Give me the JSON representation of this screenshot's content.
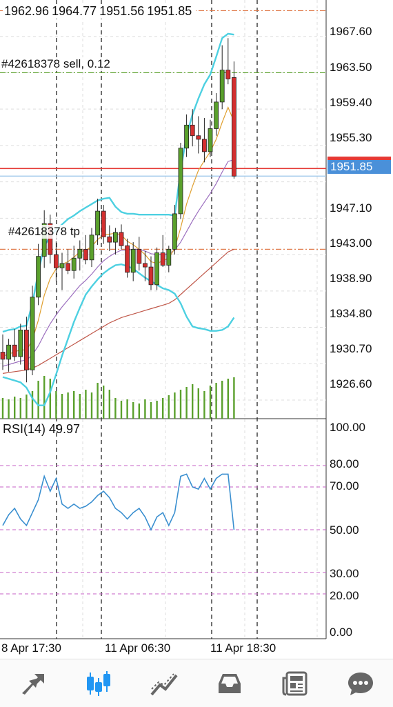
{
  "header_ohlc": {
    "open": "1962.96",
    "high": "1964.77",
    "low": "1951.56",
    "close": "1951.85"
  },
  "orders": [
    {
      "label": "#42618378 sell, 0.12"
    },
    {
      "label": "#42618378 tp"
    }
  ],
  "current_price": "1951.85",
  "price_axis": [
    "1967.60",
    "1963.50",
    "1959.40",
    "1955.30",
    "1947.10",
    "1943.00",
    "1938.90",
    "1934.80",
    "1930.70",
    "1926.60"
  ],
  "rsi": {
    "title": "RSI(14) 49.97",
    "levels": [
      "100.00",
      "80.00",
      "70.00",
      "50.00",
      "30.00",
      "20.00",
      "0.00"
    ]
  },
  "time_axis": [
    "8 Apr 17:30",
    "11 Apr 06:30",
    "11 Apr 18:30"
  ],
  "colors": {
    "bull": "#5aa02c",
    "bear": "#d32f2f",
    "bands": "#4dd0e1",
    "ma_fast": "#e0a030",
    "ma_mid": "#9c6fbf",
    "ma_slow": "#c0584a",
    "rsi_line": "#3a8fd0",
    "accent": "#2196f3"
  },
  "toolbar": {
    "items": [
      {
        "name": "quotes",
        "icon": "arrows-icon"
      },
      {
        "name": "chart",
        "icon": "candles-icon"
      },
      {
        "name": "trade",
        "icon": "trend-icon"
      },
      {
        "name": "history",
        "icon": "inbox-icon"
      },
      {
        "name": "news",
        "icon": "newspaper-icon"
      },
      {
        "name": "messages",
        "icon": "chat-icon"
      }
    ]
  },
  "chart_data": {
    "type": "candlestick",
    "y_range": [
      1924.5,
      1971.7
    ],
    "price_lines": {
      "sell_order": 1963.5,
      "tp": 1943.6,
      "bid": 1951.85,
      "ask": 1952.7,
      "top_line": 1970.5
    },
    "candles": [
      {
        "o": 1932.0,
        "h": 1934.0,
        "l": 1930.0,
        "c": 1931.2
      },
      {
        "o": 1931.2,
        "h": 1933.5,
        "l": 1929.8,
        "c": 1932.8
      },
      {
        "o": 1932.8,
        "h": 1934.6,
        "l": 1931.0,
        "c": 1931.5
      },
      {
        "o": 1931.5,
        "h": 1935.2,
        "l": 1930.6,
        "c": 1934.5
      },
      {
        "o": 1934.5,
        "h": 1936.0,
        "l": 1928.6,
        "c": 1930.0
      },
      {
        "o": 1930.0,
        "h": 1939.5,
        "l": 1929.4,
        "c": 1938.2
      },
      {
        "o": 1938.2,
        "h": 1944.2,
        "l": 1937.3,
        "c": 1942.8
      },
      {
        "o": 1942.8,
        "h": 1948.0,
        "l": 1941.5,
        "c": 1946.5
      },
      {
        "o": 1946.5,
        "h": 1947.5,
        "l": 1942.0,
        "c": 1943.0
      },
      {
        "o": 1943.0,
        "h": 1944.5,
        "l": 1940.0,
        "c": 1941.5
      },
      {
        "o": 1941.5,
        "h": 1943.2,
        "l": 1939.0,
        "c": 1942.0
      },
      {
        "o": 1942.0,
        "h": 1943.6,
        "l": 1940.8,
        "c": 1941.2
      },
      {
        "o": 1941.2,
        "h": 1944.0,
        "l": 1940.3,
        "c": 1942.6
      },
      {
        "o": 1942.6,
        "h": 1944.6,
        "l": 1941.2,
        "c": 1943.6
      },
      {
        "o": 1943.6,
        "h": 1945.2,
        "l": 1941.9,
        "c": 1942.4
      },
      {
        "o": 1942.4,
        "h": 1946.0,
        "l": 1941.6,
        "c": 1945.2
      },
      {
        "o": 1945.2,
        "h": 1949.3,
        "l": 1944.1,
        "c": 1947.9
      },
      {
        "o": 1947.9,
        "h": 1948.6,
        "l": 1944.2,
        "c": 1945.0
      },
      {
        "o": 1945.0,
        "h": 1946.3,
        "l": 1943.4,
        "c": 1944.4
      },
      {
        "o": 1944.4,
        "h": 1946.0,
        "l": 1943.0,
        "c": 1945.5
      },
      {
        "o": 1945.5,
        "h": 1946.4,
        "l": 1943.6,
        "c": 1944.0
      },
      {
        "o": 1944.0,
        "h": 1944.8,
        "l": 1940.4,
        "c": 1941.0
      },
      {
        "o": 1941.0,
        "h": 1944.4,
        "l": 1940.0,
        "c": 1943.6
      },
      {
        "o": 1943.6,
        "h": 1945.0,
        "l": 1941.2,
        "c": 1942.0
      },
      {
        "o": 1942.0,
        "h": 1943.4,
        "l": 1940.0,
        "c": 1941.6
      },
      {
        "o": 1941.6,
        "h": 1942.8,
        "l": 1939.0,
        "c": 1939.6
      },
      {
        "o": 1939.6,
        "h": 1943.8,
        "l": 1939.0,
        "c": 1943.2
      },
      {
        "o": 1943.2,
        "h": 1945.2,
        "l": 1941.6,
        "c": 1941.8
      },
      {
        "o": 1941.8,
        "h": 1944.0,
        "l": 1941.0,
        "c": 1943.6
      },
      {
        "o": 1943.6,
        "h": 1948.6,
        "l": 1943.0,
        "c": 1947.6
      },
      {
        "o": 1947.6,
        "h": 1955.6,
        "l": 1947.0,
        "c": 1955.0
      },
      {
        "o": 1955.0,
        "h": 1958.8,
        "l": 1954.0,
        "c": 1957.6
      },
      {
        "o": 1957.6,
        "h": 1959.4,
        "l": 1955.2,
        "c": 1956.4
      },
      {
        "o": 1956.4,
        "h": 1958.6,
        "l": 1954.4,
        "c": 1956.0
      },
      {
        "o": 1956.0,
        "h": 1958.4,
        "l": 1953.4,
        "c": 1954.6
      },
      {
        "o": 1954.6,
        "h": 1958.2,
        "l": 1954.0,
        "c": 1957.2
      },
      {
        "o": 1957.2,
        "h": 1961.2,
        "l": 1956.4,
        "c": 1960.2
      },
      {
        "o": 1960.2,
        "h": 1966.6,
        "l": 1959.4,
        "c": 1963.8
      },
      {
        "o": 1963.8,
        "h": 1967.4,
        "l": 1962.2,
        "c": 1962.8
      },
      {
        "o": 1962.96,
        "h": 1964.77,
        "l": 1951.56,
        "c": 1951.85
      }
    ],
    "moving_averages": {
      "fast": [
        1931.5,
        1931.8,
        1932.0,
        1932.3,
        1932.2,
        1933.4,
        1935.6,
        1938.4,
        1940.3,
        1941.4,
        1941.9,
        1942.2,
        1942.7,
        1943.3,
        1943.5,
        1943.9,
        1944.7,
        1945.2,
        1945.3,
        1945.4,
        1945.2,
        1944.5,
        1944.1,
        1943.6,
        1943.0,
        1942.2,
        1942.0,
        1942.3,
        1942.6,
        1943.7,
        1946.0,
        1948.7,
        1950.7,
        1952.5,
        1953.6,
        1954.6,
        1956.0,
        1957.9,
        1959.6,
        1958.0
      ],
      "mid": [
        1930.4,
        1930.6,
        1930.8,
        1931.0,
        1931.1,
        1931.7,
        1932.7,
        1934.0,
        1935.2,
        1936.2,
        1937.1,
        1937.9,
        1938.7,
        1939.5,
        1940.1,
        1940.8,
        1941.6,
        1942.3,
        1942.8,
        1943.2,
        1943.5,
        1943.5,
        1943.6,
        1943.6,
        1943.4,
        1943.1,
        1943.0,
        1943.0,
        1943.1,
        1943.5,
        1944.4,
        1945.6,
        1946.8,
        1947.9,
        1948.9,
        1949.9,
        1951.0,
        1952.3,
        1953.5,
        1953.7
      ],
      "slow": [
        1929.6,
        1929.7,
        1929.8,
        1929.9,
        1930.0,
        1930.2,
        1930.5,
        1930.9,
        1931.3,
        1931.7,
        1932.1,
        1932.5,
        1932.9,
        1933.3,
        1933.7,
        1934.1,
        1934.5,
        1934.9,
        1935.3,
        1935.6,
        1935.9,
        1936.1,
        1936.3,
        1936.5,
        1936.7,
        1936.9,
        1937.1,
        1937.3,
        1937.5,
        1937.9,
        1938.5,
        1939.1,
        1939.7,
        1940.3,
        1940.9,
        1941.5,
        1942.1,
        1942.7,
        1943.3,
        1943.6
      ]
    },
    "bollinger": {
      "upper": [
        1934.3,
        1934.5,
        1934.6,
        1934.9,
        1935.0,
        1937.5,
        1941.0,
        1944.0,
        1945.0,
        1945.8,
        1946.4,
        1947.0,
        1947.4,
        1947.9,
        1948.3,
        1948.7,
        1949.1,
        1949.3,
        1949.4,
        1948.4,
        1947.8,
        1947.6,
        1947.6,
        1947.5,
        1947.5,
        1947.5,
        1947.5,
        1947.5,
        1947.5,
        1947.4,
        1952.5,
        1956.4,
        1958.8,
        1960.6,
        1962.2,
        1963.3,
        1965.3,
        1967.4,
        1967.9,
        1967.8
      ],
      "lower": [
        1929.2,
        1929.0,
        1928.8,
        1928.6,
        1928.0,
        1926.8,
        1926.0,
        1926.0,
        1927.5,
        1929.5,
        1931.6,
        1933.5,
        1935.4,
        1937.0,
        1938.5,
        1939.4,
        1940.2,
        1940.9,
        1941.4,
        1941.8,
        1941.9,
        1941.7,
        1941.4,
        1940.9,
        1940.4,
        1940.0,
        1939.6,
        1939.2,
        1939.0,
        1938.6,
        1937.5,
        1936.0,
        1934.9,
        1934.7,
        1934.6,
        1934.4,
        1934.4,
        1934.5,
        1934.9,
        1935.9
      ]
    },
    "volume": [
      30,
      28,
      32,
      30,
      35,
      40,
      55,
      62,
      58,
      40,
      36,
      38,
      40,
      36,
      42,
      38,
      52,
      48,
      42,
      30,
      26,
      28,
      24,
      22,
      28,
      24,
      26,
      30,
      34,
      38,
      42,
      46,
      50,
      44,
      40,
      48,
      52,
      55,
      58,
      60
    ],
    "rsi_values": [
      52,
      57,
      60,
      55,
      52,
      58,
      64,
      75,
      68,
      74,
      62,
      60,
      62,
      60,
      61,
      63,
      66,
      68,
      65,
      60,
      58,
      55,
      58,
      60,
      56,
      50,
      56,
      58,
      52,
      58,
      75,
      76,
      70,
      69,
      74,
      69,
      74,
      76,
      76,
      49.97
    ]
  }
}
